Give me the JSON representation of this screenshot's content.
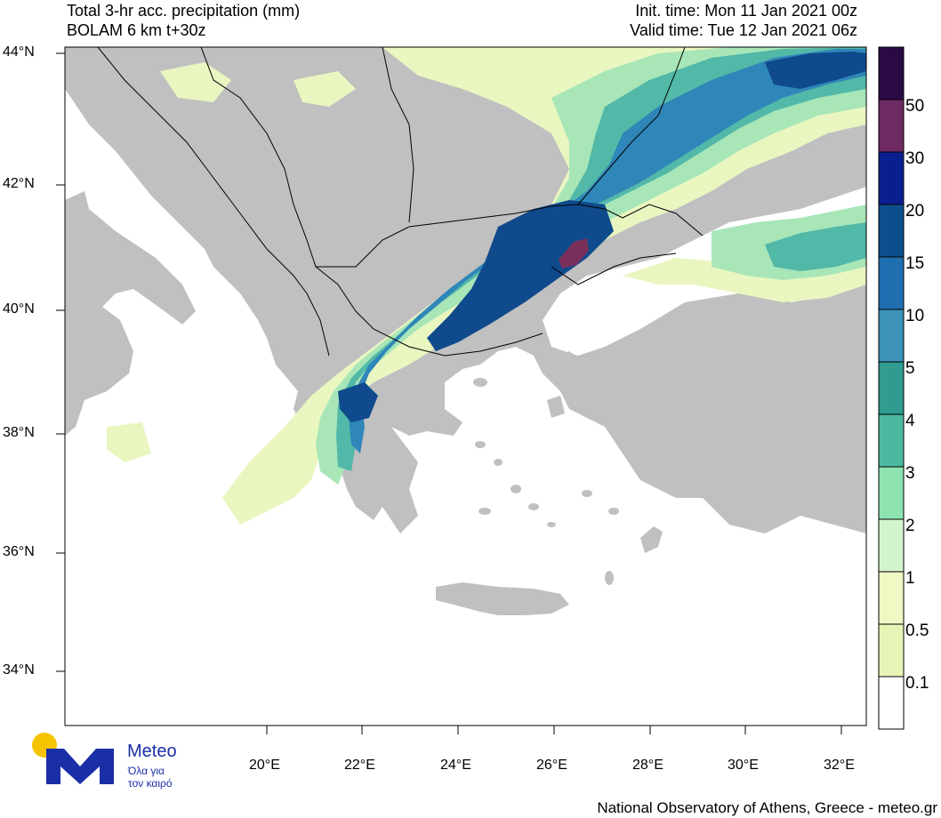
{
  "header": {
    "title_line1": "Total 3-hr acc. precipitation (mm)",
    "title_line2": "BOLAM 6 km t+30z",
    "init_time": "Init. time: Mon 11 Jan 2021 00z",
    "valid_time": "Valid time: Tue 12 Jan 2021 06z"
  },
  "lat_labels": [
    "44°N",
    "42°N",
    "40°N",
    "38°N",
    "36°N",
    "34°N"
  ],
  "lon_labels": [
    "20°E",
    "22°E",
    "24°E",
    "26°E",
    "28°E",
    "30°E",
    "32°E"
  ],
  "colorbar": {
    "labels": [
      "50",
      "30",
      "20",
      "15",
      "10",
      "5",
      "4",
      "3",
      "2",
      "1",
      "0.5",
      "0.1"
    ],
    "colors": [
      "#2a0a45",
      "#6e2a63",
      "#0a1f8f",
      "#0d4f8c",
      "#1f6fb0",
      "#3d93ba",
      "#2f9c8f",
      "#4db8a0",
      "#8ee3b0",
      "#d3f5cd",
      "#eef9c3",
      "#e6f5b5",
      "#ffffff"
    ]
  },
  "map_colors": {
    "land": "#c0c0c0",
    "sea": "#ffffff",
    "light_precip": "#e9f6c0",
    "green_precip": "#a8e6b8",
    "teal_precip": "#52b8a8",
    "blue_precip": "#2f86b8",
    "dark_blue_precip": "#0f4a8c",
    "max_precip": "#7a2f5a"
  },
  "logo": {
    "name": "Meteo",
    "tagline_line1": "Όλα για",
    "tagline_line2": "τον καιρό"
  },
  "footer": {
    "credit": "National Observatory of Athens, Greece - meteo.gr"
  }
}
